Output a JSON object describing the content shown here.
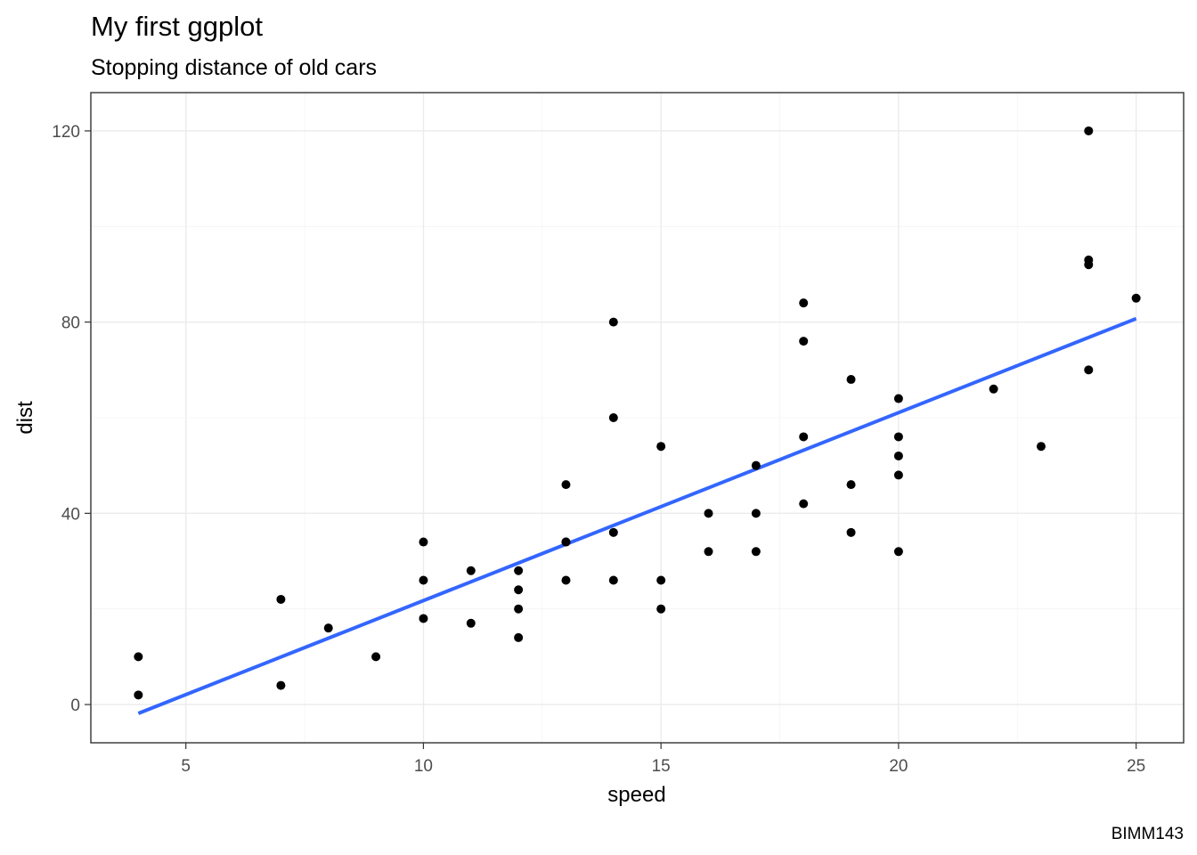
{
  "chart_data": {
    "type": "scatter",
    "title": "My first ggplot",
    "subtitle": "Stopping distance of old cars",
    "xlabel": "speed",
    "ylabel": "dist",
    "caption": "BIMM143",
    "xlim": [
      3,
      26
    ],
    "ylim": [
      -8,
      128
    ],
    "x_ticks": [
      5,
      10,
      15,
      20,
      25
    ],
    "y_ticks": [
      0,
      40,
      80,
      120
    ],
    "grid": true,
    "legend": "none",
    "points": [
      [
        4,
        2
      ],
      [
        4,
        10
      ],
      [
        7,
        4
      ],
      [
        7,
        22
      ],
      [
        8,
        16
      ],
      [
        9,
        10
      ],
      [
        10,
        18
      ],
      [
        10,
        26
      ],
      [
        10,
        34
      ],
      [
        11,
        17
      ],
      [
        11,
        28
      ],
      [
        12,
        14
      ],
      [
        12,
        20
      ],
      [
        12,
        24
      ],
      [
        12,
        28
      ],
      [
        13,
        26
      ],
      [
        13,
        34
      ],
      [
        13,
        34
      ],
      [
        13,
        46
      ],
      [
        14,
        26
      ],
      [
        14,
        36
      ],
      [
        14,
        60
      ],
      [
        14,
        80
      ],
      [
        15,
        20
      ],
      [
        15,
        26
      ],
      [
        15,
        54
      ],
      [
        16,
        32
      ],
      [
        16,
        40
      ],
      [
        17,
        32
      ],
      [
        17,
        40
      ],
      [
        17,
        50
      ],
      [
        18,
        42
      ],
      [
        18,
        56
      ],
      [
        18,
        76
      ],
      [
        18,
        84
      ],
      [
        19,
        36
      ],
      [
        19,
        46
      ],
      [
        19,
        68
      ],
      [
        20,
        32
      ],
      [
        20,
        48
      ],
      [
        20,
        52
      ],
      [
        20,
        56
      ],
      [
        20,
        64
      ],
      [
        22,
        66
      ],
      [
        23,
        54
      ],
      [
        24,
        70
      ],
      [
        24,
        92
      ],
      [
        24,
        93
      ],
      [
        24,
        120
      ],
      [
        25,
        85
      ]
    ],
    "trend_line": {
      "method": "lm",
      "intercept": -17.579,
      "slope": 3.932,
      "x_range": [
        4,
        25
      ]
    },
    "colors": {
      "points": "#000000",
      "trend_line": "#3366ff"
    }
  }
}
